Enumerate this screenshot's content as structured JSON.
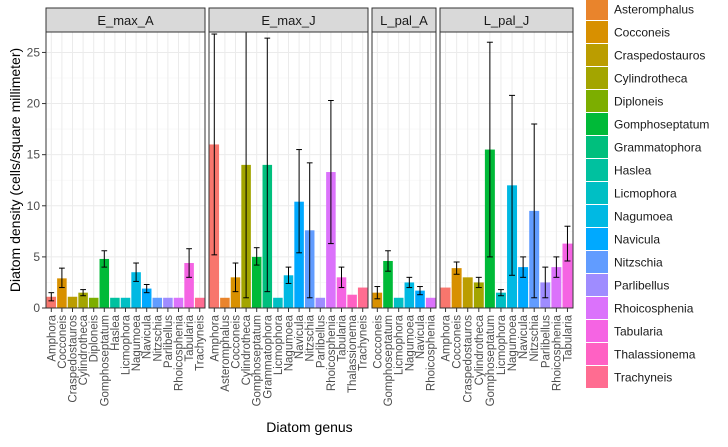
{
  "chart_data": {
    "type": "bar",
    "xlabel": "Diatom genus",
    "ylabel": "Diatom density (cells/square millimeter)",
    "ylim": [
      0,
      27
    ],
    "yticks": [
      0,
      5,
      10,
      15,
      20,
      25
    ],
    "grid": true,
    "legend_position": "right",
    "error_bars": true,
    "legend": [
      {
        "name": "Asteromphalus",
        "color": "#E9842C"
      },
      {
        "name": "Cocconeis",
        "color": "#D89000"
      },
      {
        "name": "Craspedostauros",
        "color": "#BB9D00"
      },
      {
        "name": "Cylindrotheca",
        "color": "#A3A500"
      },
      {
        "name": "Diploneis",
        "color": "#7CAE00"
      },
      {
        "name": "Gomphoseptatum",
        "color": "#00BA38"
      },
      {
        "name": "Grammatophora",
        "color": "#00BF7D"
      },
      {
        "name": "Haslea",
        "color": "#00C19F"
      },
      {
        "name": "Licmophora",
        "color": "#00BFC4"
      },
      {
        "name": "Nagumoea",
        "color": "#00B9E3"
      },
      {
        "name": "Navicula",
        "color": "#00A9FF"
      },
      {
        "name": "Nitzschia",
        "color": "#619CFF"
      },
      {
        "name": "Parlibellus",
        "color": "#9F8CFF"
      },
      {
        "name": "Rhoicosphenia",
        "color": "#DB72FB"
      },
      {
        "name": "Tabularia",
        "color": "#F564E3"
      },
      {
        "name": "Thalassionema",
        "color": "#FF61C3"
      },
      {
        "name": "Trachyneis",
        "color": "#FF6C91"
      }
    ],
    "amphora_color": "#F8766D",
    "panels": [
      {
        "title": "E_max_A",
        "bars": [
          {
            "genus": "Amphora",
            "value": 1.1,
            "err": [
              0.7,
              1.5
            ]
          },
          {
            "genus": "Cocconeis",
            "value": 2.9,
            "err": [
              2.0,
              3.9
            ]
          },
          {
            "genus": "Craspedostauros",
            "value": 1.1,
            "err": null
          },
          {
            "genus": "Cylindrotheca",
            "value": 1.5,
            "err": [
              1.2,
              1.8
            ]
          },
          {
            "genus": "Diploneis",
            "value": 1.0,
            "err": null
          },
          {
            "genus": "Gomphoseptatum",
            "value": 4.8,
            "err": [
              4.0,
              5.6
            ]
          },
          {
            "genus": "Haslea",
            "value": 1.0,
            "err": null
          },
          {
            "genus": "Licmophora",
            "value": 1.0,
            "err": null
          },
          {
            "genus": "Nagumoea",
            "value": 3.5,
            "err": [
              2.6,
              4.4
            ]
          },
          {
            "genus": "Navicula",
            "value": 1.9,
            "err": [
              1.5,
              2.3
            ]
          },
          {
            "genus": "Nitzschia",
            "value": 1.0,
            "err": null
          },
          {
            "genus": "Parlibellus",
            "value": 1.0,
            "err": null
          },
          {
            "genus": "Rhoicosphenia",
            "value": 1.0,
            "err": null
          },
          {
            "genus": "Tabularia",
            "value": 4.4,
            "err": [
              3.0,
              5.8
            ]
          },
          {
            "genus": "Trachyneis",
            "value": 1.0,
            "err": null
          }
        ]
      },
      {
        "title": "E_max_J",
        "bars": [
          {
            "genus": "Amphora",
            "value": 16.0,
            "err": [
              5.2,
              26.8
            ]
          },
          {
            "genus": "Asteromphalus",
            "value": 1.0,
            "err": null
          },
          {
            "genus": "Cocconeis",
            "value": 3.0,
            "err": [
              1.6,
              4.4
            ]
          },
          {
            "genus": "Cylindrotheca",
            "value": 14.0,
            "err": [
              1.0,
              27.0
            ]
          },
          {
            "genus": "Gomphoseptatum",
            "value": 5.0,
            "err": [
              4.2,
              5.9
            ]
          },
          {
            "genus": "Grammatophora",
            "value": 14.0,
            "err": [
              1.6,
              26.4
            ]
          },
          {
            "genus": "Licmophora",
            "value": 1.0,
            "err": null
          },
          {
            "genus": "Nagumoea",
            "value": 3.2,
            "err": [
              2.4,
              4.0
            ]
          },
          {
            "genus": "Navicula",
            "value": 10.4,
            "err": [
              5.4,
              15.5
            ]
          },
          {
            "genus": "Nitzschia",
            "value": 7.6,
            "err": [
              1.0,
              14.2
            ]
          },
          {
            "genus": "Parlibellus",
            "value": 1.0,
            "err": null
          },
          {
            "genus": "Rhoicosphenia",
            "value": 13.3,
            "err": [
              6.3,
              20.3
            ]
          },
          {
            "genus": "Tabularia",
            "value": 3.0,
            "err": [
              2.0,
              4.0
            ]
          },
          {
            "genus": "Thalassionema",
            "value": 1.3,
            "err": null
          },
          {
            "genus": "Trachyneis",
            "value": 2.0,
            "err": null
          }
        ]
      },
      {
        "title": "L_pal_A",
        "bars": [
          {
            "genus": "Cocconeis",
            "value": 1.5,
            "err": [
              0.9,
              2.1
            ]
          },
          {
            "genus": "Gomphoseptatum",
            "value": 4.6,
            "err": [
              3.6,
              5.6
            ]
          },
          {
            "genus": "Licmophora",
            "value": 1.0,
            "err": null
          },
          {
            "genus": "Nagumoea",
            "value": 2.5,
            "err": [
              2.0,
              3.0
            ]
          },
          {
            "genus": "Navicula",
            "value": 1.7,
            "err": [
              1.3,
              2.1
            ]
          },
          {
            "genus": "Rhoicosphenia",
            "value": 1.0,
            "err": null
          }
        ]
      },
      {
        "title": "L_pal_J",
        "bars": [
          {
            "genus": "Amphora",
            "value": 2.0,
            "err": null
          },
          {
            "genus": "Cocconeis",
            "value": 3.9,
            "err": [
              3.3,
              4.5
            ]
          },
          {
            "genus": "Craspedostauros",
            "value": 3.0,
            "err": null
          },
          {
            "genus": "Cylindrotheca",
            "value": 2.5,
            "err": [
              2.0,
              3.0
            ]
          },
          {
            "genus": "Gomphoseptatum",
            "value": 15.5,
            "err": [
              5.0,
              26.0
            ]
          },
          {
            "genus": "Licmophora",
            "value": 1.5,
            "err": [
              1.2,
              1.8
            ]
          },
          {
            "genus": "Nagumoea",
            "value": 12.0,
            "err": [
              3.2,
              20.8
            ]
          },
          {
            "genus": "Navicula",
            "value": 4.0,
            "err": [
              3.0,
              5.0
            ]
          },
          {
            "genus": "Nitzschia",
            "value": 9.5,
            "err": [
              1.0,
              18.0
            ]
          },
          {
            "genus": "Parlibellus",
            "value": 2.5,
            "err": [
              1.0,
              4.0
            ]
          },
          {
            "genus": "Rhoicosphenia",
            "value": 4.0,
            "err": [
              3.0,
              5.0
            ]
          },
          {
            "genus": "Tabularia",
            "value": 6.3,
            "err": [
              4.6,
              8.0
            ]
          }
        ]
      }
    ]
  }
}
